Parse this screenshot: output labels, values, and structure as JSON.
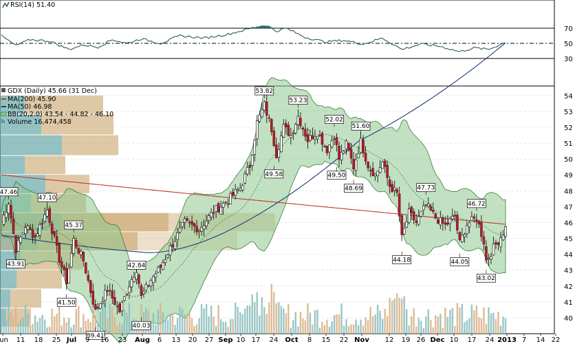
{
  "rsi_panel": {
    "label": "RSI(14) 51.40",
    "levels": [
      "70",
      "50",
      "30"
    ],
    "line_color": "#2d5a5a",
    "fill_color": "#2d6e6e"
  },
  "price_panel": {
    "header": "GDX (Daily) 45.66 (31 Dec)",
    "legend": [
      {
        "text": "MA(200) 45.90",
        "color": "#c0392b"
      },
      {
        "text": "MA(50) 46.98",
        "color": "#1f3a7a"
      },
      {
        "text": "BB(20,2.0) 43.54 - 44.82 - 46.10",
        "color": "#2e8b57"
      },
      {
        "text": "Volume 16,474,458",
        "color": "#3d8f8f"
      }
    ]
  },
  "chart_data": {
    "type": "candlestick",
    "y_ticks": [
      "54",
      "53",
      "52",
      "51",
      "50",
      "49",
      "48",
      "47",
      "46",
      "45",
      "44",
      "43",
      "42",
      "41",
      "40"
    ],
    "ylim": [
      39,
      54.6
    ],
    "x_ticks": [
      "Jun",
      "11",
      "18",
      "25",
      "Jul",
      "9",
      "16",
      "23",
      "Aug",
      "6",
      "13",
      "20",
      "27",
      "Sep",
      "10",
      "17",
      "24",
      "Oct",
      "8",
      "15",
      "22",
      "Nov",
      "12",
      "19",
      "26",
      "Dec",
      "10",
      "17",
      "24",
      "2013",
      "7",
      "14",
      "22"
    ],
    "annotations": [
      {
        "label": "47.46",
        "day": 3,
        "value": 47.46
      },
      {
        "label": "43.91",
        "day": 6,
        "value": 43.91
      },
      {
        "label": "47.10",
        "day": 19,
        "value": 47.1
      },
      {
        "label": "45.37",
        "day": 30,
        "value": 45.37
      },
      {
        "label": "41.50",
        "day": 27,
        "value": 41.5
      },
      {
        "label": "39.41",
        "day": 39,
        "value": 39.41
      },
      {
        "label": "42.84",
        "day": 56,
        "value": 42.84
      },
      {
        "label": "40.03",
        "day": 58,
        "value": 40.03
      },
      {
        "label": "53.82",
        "day": 109,
        "value": 53.82
      },
      {
        "label": "53.23",
        "day": 123,
        "value": 53.23
      },
      {
        "label": "49.58",
        "day": 113,
        "value": 49.58
      },
      {
        "label": "52.02",
        "day": 138,
        "value": 52.02
      },
      {
        "label": "49.50",
        "day": 139,
        "value": 49.5
      },
      {
        "label": "51.60",
        "day": 149,
        "value": 51.6
      },
      {
        "label": "48.69",
        "day": 146,
        "value": 48.69
      },
      {
        "label": "47.73",
        "day": 176,
        "value": 47.73
      },
      {
        "label": "46.72",
        "day": 197,
        "value": 46.72
      },
      {
        "label": "44.18",
        "day": 166,
        "value": 44.18
      },
      {
        "label": "44.05",
        "day": 190,
        "value": 44.05
      },
      {
        "label": "43.02",
        "day": 201,
        "value": 43.02
      }
    ]
  }
}
